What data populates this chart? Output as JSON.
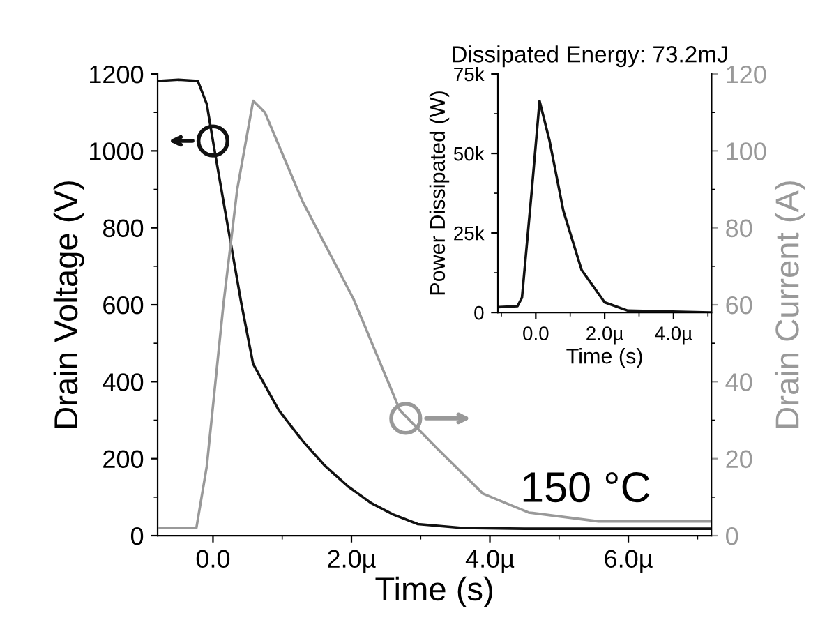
{
  "chart_data": [
    {
      "type": "line",
      "xlabel": "Time (s)",
      "ylabel": "Drain Voltage (V)",
      "y2label": "Drain Current (A)",
      "xlim": [
        -0.8,
        7.2
      ],
      "xticks": [
        {
          "value": 0,
          "label": "0.0"
        },
        {
          "value": 2,
          "label": "2.0µ"
        },
        {
          "value": 4,
          "label": "4.0µ"
        },
        {
          "value": 6,
          "label": "6.0µ"
        }
      ],
      "ylim": [
        0,
        1200
      ],
      "yticks": [
        0,
        200,
        400,
        600,
        800,
        1000,
        1200
      ],
      "y2lim": [
        0,
        120
      ],
      "y2ticks": [
        0,
        20,
        40,
        60,
        80,
        100,
        120
      ],
      "annotations": [
        "150 °C"
      ],
      "series": [
        {
          "color": "#111111",
          "x": [
            -0.79,
            -0.5,
            -0.22,
            -0.09,
            0,
            0.21,
            0.41,
            0.58,
            0.95,
            1.3,
            1.62,
            1.95,
            2.29,
            2.6,
            2.96,
            3.6,
            4.5,
            5.5,
            7.2
          ],
          "values": [
            1182,
            1185,
            1182,
            1122,
            1025,
            808,
            603,
            446,
            326,
            245,
            181,
            128,
            84,
            55,
            30,
            20,
            18,
            18,
            18
          ]
        },
        {
          "color": "#999999",
          "axis": "y2",
          "x": [
            -0.79,
            -0.24,
            -0.09,
            0.15,
            0.35,
            0.58,
            0.75,
            1.29,
            2.03,
            2.7,
            3.22,
            3.9,
            4.56,
            5.57,
            7.2
          ],
          "values": [
            2,
            2,
            18,
            60,
            90,
            113,
            110,
            87,
            61.5,
            32.6,
            23,
            10.9,
            6,
            3.7,
            3.7
          ]
        }
      ]
    },
    {
      "type": "line",
      "title": "Dissipated Energy: 73.2mJ",
      "xlabel": "Time (s)",
      "ylabel": "Power Dissipated (W)",
      "xlim": [
        -1.1,
        5.1
      ],
      "xticks": [
        {
          "value": 0,
          "label": "0.0"
        },
        {
          "value": 2,
          "label": "2.0µ"
        },
        {
          "value": 4,
          "label": "4.0µ"
        }
      ],
      "ylim": [
        0,
        75000
      ],
      "yticks": [
        0,
        {
          "value": 25000,
          "label": "25k"
        },
        {
          "value": 50000,
          "label": "50k"
        },
        {
          "value": 75000,
          "label": "75k"
        }
      ],
      "series": [
        {
          "color": "#111111",
          "x": [
            -1.06,
            -0.53,
            -0.4,
            -0.13,
            0.11,
            0.4,
            0.8,
            1.33,
            2.0,
            2.67,
            5.1
          ],
          "values": [
            1700,
            2000,
            4700,
            36700,
            66500,
            54000,
            32000,
            13400,
            3200,
            600,
            0
          ]
        }
      ]
    }
  ]
}
